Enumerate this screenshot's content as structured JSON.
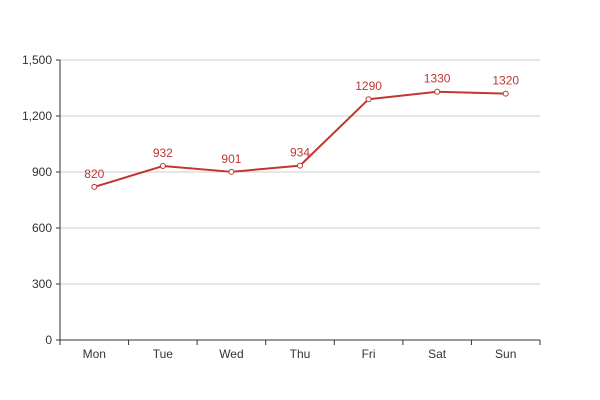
{
  "chart_data": {
    "type": "line",
    "title": "",
    "xlabel": "",
    "ylabel": "",
    "categories": [
      "Mon",
      "Tue",
      "Wed",
      "Thu",
      "Fri",
      "Sat",
      "Sun"
    ],
    "series": [
      {
        "values": [
          820,
          932,
          901,
          934,
          1290,
          1330,
          1320
        ]
      }
    ],
    "data_labels": [
      "820",
      "932",
      "901",
      "934",
      "1290",
      "1330",
      "1320"
    ],
    "y_ticks": [
      {
        "value": 0,
        "label": "0"
      },
      {
        "value": 300,
        "label": "300"
      },
      {
        "value": 600,
        "label": "600"
      },
      {
        "value": 900,
        "label": "900"
      },
      {
        "value": 1200,
        "label": "1,200"
      },
      {
        "value": 1500,
        "label": "1,500"
      }
    ],
    "ylim": [
      0,
      1500
    ],
    "grid": true,
    "legend": "none",
    "colors": {
      "series": "#c23531",
      "grid": "#cccccc",
      "axis": "#333333",
      "text": "#333333"
    }
  }
}
